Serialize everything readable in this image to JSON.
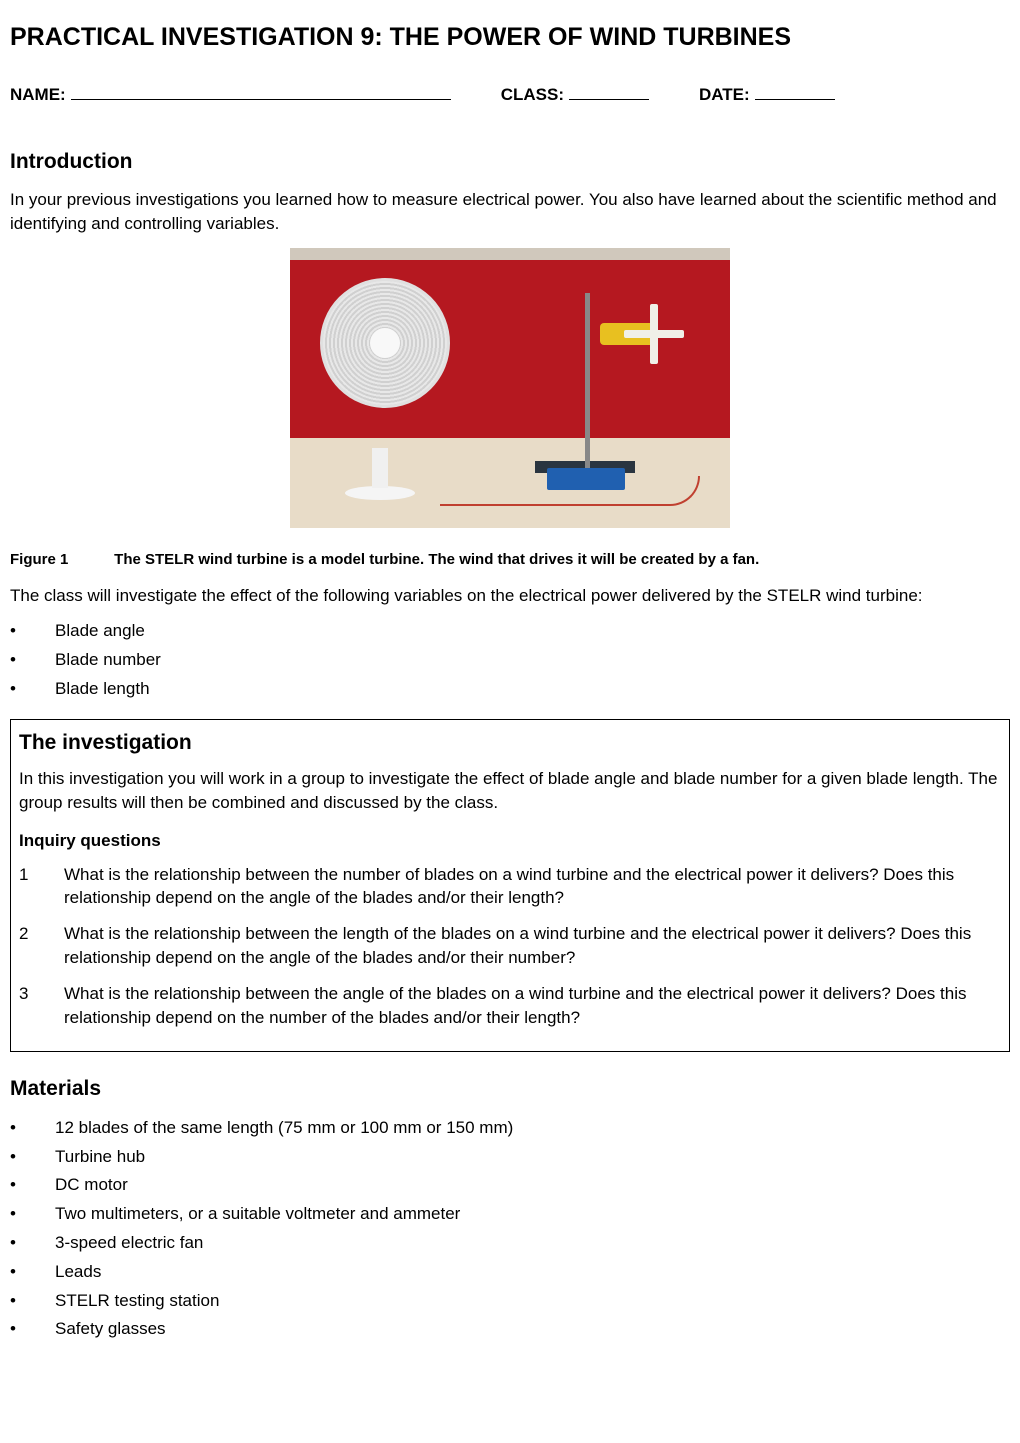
{
  "title": "PRACTICAL INVESTIGATION 9: THE POWER OF WIND TURBINES",
  "fields": {
    "name_label": "NAME:",
    "class_label": "CLASS:",
    "date_label": "DATE:"
  },
  "intro": {
    "heading": "Introduction",
    "para": "In your previous investigations you learned how to measure electrical power. You also have learned about the scientific method and identifying and controlling variables."
  },
  "figure": {
    "number": "Figure 1",
    "caption": "The STELR wind turbine is a model turbine. The wind that drives it will be created by a fan.",
    "colors": {
      "wall": "#b51820",
      "table": "#e8dcc8",
      "fan": "#f0f0f0",
      "motor": "#e8c020",
      "station": "#2060b0",
      "wire": "#c04030",
      "stand": "#2a3540"
    }
  },
  "variables_intro": "The class will investigate the effect of the following variables on the electrical power delivered by the STELR wind turbine:",
  "variables": [
    "Blade angle",
    "Blade number",
    "Blade length"
  ],
  "investigation": {
    "heading": "The investigation",
    "para": "In this investigation you will work in a group to investigate the effect of blade angle and blade number for a given blade length. The group results will then be combined and discussed by the class.",
    "inquiry_heading": "Inquiry questions",
    "questions": [
      "What is the relationship between the number of blades on a wind turbine and the electrical power it delivers? Does this relationship depend on the angle of the blades and/or their length?",
      "What is the relationship between the length of the blades on a wind turbine and the electrical power it delivers? Does this relationship depend on the angle of the blades and/or their number?",
      "What is the relationship between the angle of the blades on a wind turbine and the electrical power it delivers? Does this relationship depend on the number of the blades and/or their length?"
    ]
  },
  "materials": {
    "heading": "Materials",
    "items": [
      "12 blades of the same length (75 mm or 100 mm or 150 mm)",
      "Turbine hub",
      "DC motor",
      "Two multimeters, or a suitable voltmeter and ammeter",
      "3-speed electric fan",
      "Leads",
      "STELR testing station",
      "Safety glasses"
    ]
  }
}
